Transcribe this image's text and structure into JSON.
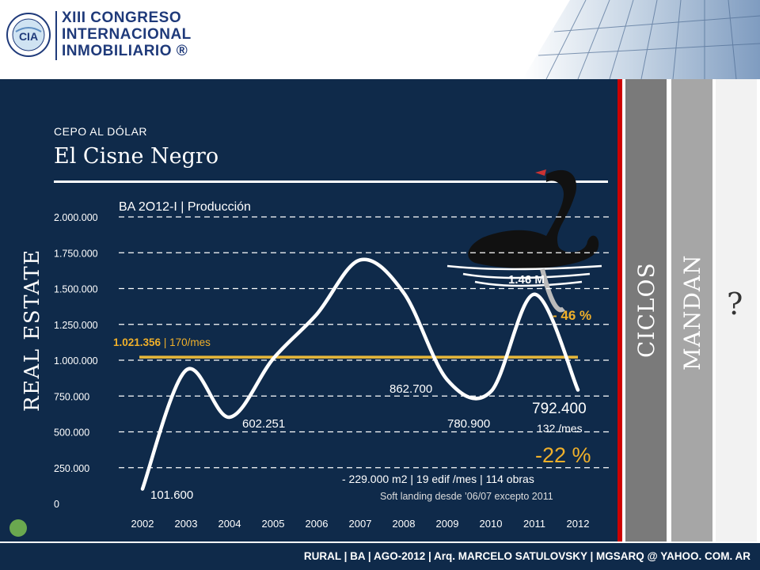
{
  "header": {
    "logo_lines": [
      "XIII CONGRESO",
      "INTERNACIONAL",
      "INMOBILIARIO ®"
    ],
    "logo_seal_text": "CIA"
  },
  "slide": {
    "kicker": "CEPO AL DÓLAR",
    "title": "El Cisne Negro",
    "vertical_label": "REAL ESTATE",
    "side_columns": [
      "CICLOS",
      "MANDAN",
      "?"
    ]
  },
  "footer": {
    "text": "RURAL | BA | AGO-2012 | Arq. MARCELO SATULOVSKY | MGSARQ @ YAHOO. COM. AR"
  },
  "colors": {
    "panel": "#0f2a4a",
    "line": "#ffffff",
    "average_line": "#e8b83a",
    "accent_text": "#f0b02a",
    "ciclos_col": "#7a7a7a",
    "mandan_col": "#a6a6a6"
  },
  "chart_data": {
    "type": "line",
    "title": "BA 2O12-I | Producción",
    "x": [
      2002,
      2003,
      2004,
      2005,
      2006,
      2007,
      2008,
      2009,
      2010,
      2011,
      2012
    ],
    "xticks": [
      "2002",
      "2003",
      "2004",
      "2005",
      "2006",
      "2007",
      "2008",
      "2009",
      "2010",
      "2011",
      "2012"
    ],
    "ylim": [
      0,
      2000000
    ],
    "yticks": [
      "0",
      "250.000",
      "500.000",
      "750.000",
      "1.000.000",
      "1.250.000",
      "1.500.000",
      "1.750.000",
      "2.000.000"
    ],
    "grid": true,
    "series": [
      {
        "values": [
          101600,
          930000,
          602251,
          1010000,
          1320000,
          1700000,
          1470000,
          862700,
          780900,
          1460000,
          792400
        ]
      }
    ],
    "average": {
      "value": 1021356,
      "label_value": "1.021.356",
      "label_rate": "| 170/mes"
    },
    "annotations": {
      "start": "101.600",
      "low_2004": "602.251",
      "mid_2009": "862.700",
      "low_2010": "780.900",
      "peak_2011": "1.46 M",
      "drop_pct": "- 46 %",
      "last_value": "792.400",
      "last_rate": "132 /mes",
      "yoy_pct": "-22 %",
      "detail": "- 229.000 m2 | 19 edif /mes | 114 obras",
      "note": "Soft landing desde ’06/07 excepto 2011"
    }
  }
}
